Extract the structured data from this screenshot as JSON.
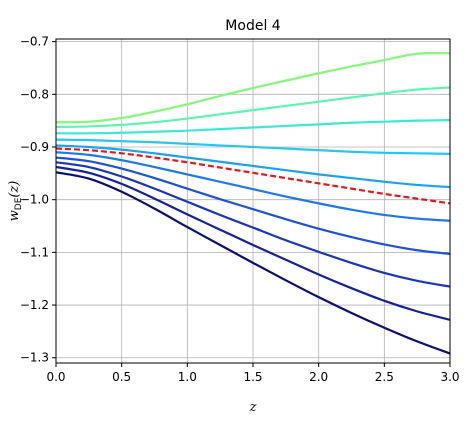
{
  "chart_data": {
    "type": "line",
    "title": "Model 4",
    "xlabel": "z",
    "ylabel_main": "w",
    "ylabel_sub": "DE",
    "ylabel_arg": "(z)",
    "xlim": [
      0.0,
      3.0
    ],
    "ylim": [
      -1.31,
      -0.695
    ],
    "grid": true,
    "x_ticks": [
      0.0,
      0.5,
      1.0,
      1.5,
      2.0,
      2.5,
      3.0
    ],
    "x_tick_labels": [
      "0.0",
      "0.5",
      "1.0",
      "1.5",
      "2.0",
      "2.5",
      "3.0"
    ],
    "y_ticks": [
      -0.7,
      -0.8,
      -0.9,
      -1.0,
      -1.1,
      -1.2,
      -1.3
    ],
    "y_tick_labels": [
      "−0.7",
      "−0.8",
      "−0.9",
      "−1.0",
      "−1.1",
      "−1.2",
      "−1.3"
    ],
    "x": [
      0.0,
      0.25,
      0.5,
      0.75,
      1.0,
      1.25,
      1.5,
      1.75,
      2.0,
      2.25,
      2.5,
      2.75,
      3.0
    ],
    "series": [
      {
        "color": "#84f87a",
        "dashed": false,
        "values": [
          -0.853,
          -0.852,
          -0.845,
          -0.833,
          -0.819,
          -0.803,
          -0.788,
          -0.774,
          -0.76,
          -0.747,
          -0.735,
          -0.723,
          -0.722
        ]
      },
      {
        "color": "#5df5b4",
        "dashed": false,
        "values": [
          -0.862,
          -0.861,
          -0.858,
          -0.853,
          -0.846,
          -0.838,
          -0.83,
          -0.822,
          -0.814,
          -0.806,
          -0.798,
          -0.791,
          -0.787
        ]
      },
      {
        "color": "#3ee8d2",
        "dashed": false,
        "values": [
          -0.874,
          -0.874,
          -0.873,
          -0.871,
          -0.869,
          -0.866,
          -0.863,
          -0.86,
          -0.857,
          -0.854,
          -0.852,
          -0.85,
          -0.849
        ]
      },
      {
        "color": "#26c6f0",
        "dashed": false,
        "values": [
          -0.886,
          -0.887,
          -0.889,
          -0.891,
          -0.894,
          -0.897,
          -0.9,
          -0.903,
          -0.906,
          -0.909,
          -0.911,
          -0.912,
          -0.913
        ]
      },
      {
        "color": "#1aa2f5",
        "dashed": false,
        "values": [
          -0.897,
          -0.9,
          -0.905,
          -0.912,
          -0.92,
          -0.928,
          -0.936,
          -0.944,
          -0.952,
          -0.959,
          -0.966,
          -0.972,
          -0.976
        ]
      },
      {
        "color": "#e31a1c",
        "dashed": true,
        "values": [
          -0.903,
          -0.906,
          -0.912,
          -0.92,
          -0.929,
          -0.939,
          -0.949,
          -0.959,
          -0.969,
          -0.979,
          -0.989,
          -0.998,
          -1.007
        ]
      },
      {
        "color": "#1e78ee",
        "dashed": false,
        "values": [
          -0.91,
          -0.915,
          -0.925,
          -0.938,
          -0.952,
          -0.966,
          -0.98,
          -0.994,
          -1.007,
          -1.019,
          -1.029,
          -1.036,
          -1.04
        ]
      },
      {
        "color": "#1d52dd",
        "dashed": false,
        "values": [
          -0.92,
          -0.927,
          -0.941,
          -0.959,
          -0.979,
          -0.999,
          -1.018,
          -1.037,
          -1.055,
          -1.071,
          -1.085,
          -1.096,
          -1.103
        ]
      },
      {
        "color": "#1a34c4",
        "dashed": false,
        "values": [
          -0.929,
          -0.938,
          -0.956,
          -0.979,
          -1.004,
          -1.029,
          -1.053,
          -1.077,
          -1.099,
          -1.12,
          -1.139,
          -1.154,
          -1.165
        ]
      },
      {
        "color": "#1320a0",
        "dashed": false,
        "values": [
          -0.938,
          -0.949,
          -0.97,
          -0.998,
          -1.028,
          -1.057,
          -1.086,
          -1.114,
          -1.142,
          -1.168,
          -1.192,
          -1.212,
          -1.228
        ]
      },
      {
        "color": "#0a0f78",
        "dashed": false,
        "values": [
          -0.948,
          -0.96,
          -0.985,
          -1.017,
          -1.052,
          -1.086,
          -1.12,
          -1.153,
          -1.185,
          -1.215,
          -1.243,
          -1.269,
          -1.292
        ]
      }
    ]
  }
}
